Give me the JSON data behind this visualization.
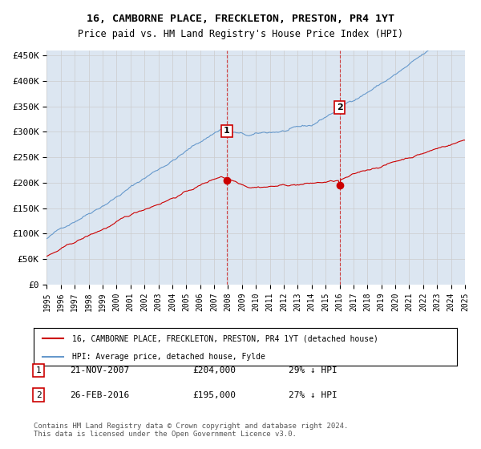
{
  "title": "16, CAMBORNE PLACE, FRECKLETON, PRESTON, PR4 1YT",
  "subtitle": "Price paid vs. HM Land Registry's House Price Index (HPI)",
  "ylabel": "",
  "ylim": [
    0,
    460000
  ],
  "yticks": [
    0,
    50000,
    100000,
    150000,
    200000,
    250000,
    300000,
    350000,
    400000,
    450000
  ],
  "ytick_labels": [
    "£0",
    "£50K",
    "£100K",
    "£150K",
    "£200K",
    "£250K",
    "£300K",
    "£350K",
    "£400K",
    "£450K"
  ],
  "hpi_color": "#6699cc",
  "price_color": "#cc0000",
  "marker1_date_idx": 155,
  "marker1_label": "1",
  "marker1_date_str": "21-NOV-2007",
  "marker1_price": 204000,
  "marker1_pct": "29% ↓ HPI",
  "marker2_date_idx": 252,
  "marker2_label": "2",
  "marker2_date_str": "26-FEB-2016",
  "marker2_price": 195000,
  "marker2_pct": "27% ↓ HPI",
  "legend_line1": "16, CAMBORNE PLACE, FRECKLETON, PRESTON, PR4 1YT (detached house)",
  "legend_line2": "HPI: Average price, detached house, Fylde",
  "footnote": "Contains HM Land Registry data © Crown copyright and database right 2024.\nThis data is licensed under the Open Government Licence v3.0.",
  "grid_color": "#cccccc",
  "background_color": "#dce6f1"
}
